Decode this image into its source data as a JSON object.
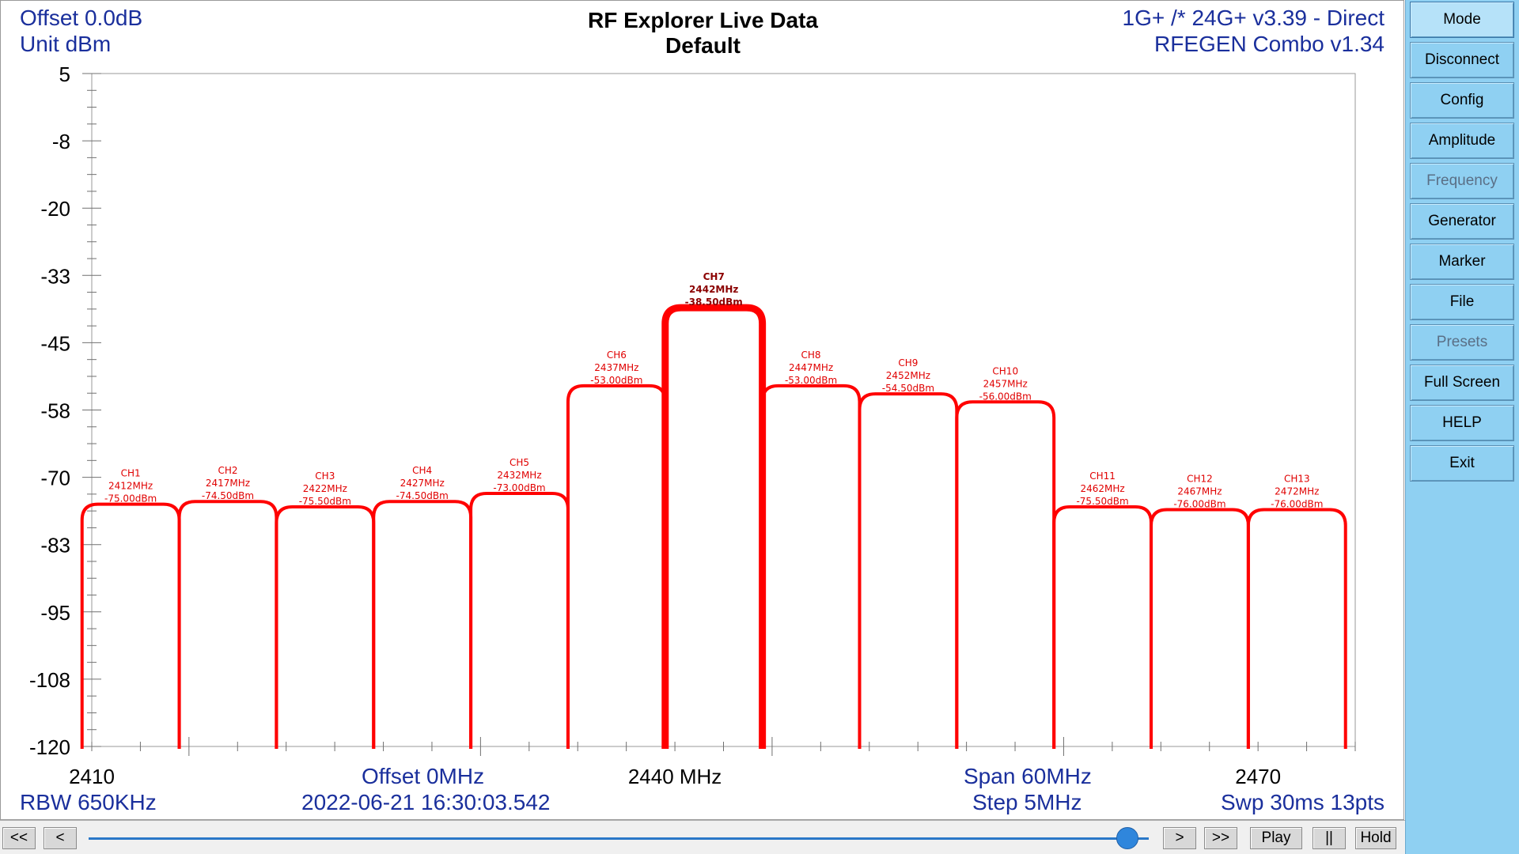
{
  "header": {
    "offset_db": "Offset 0.0dB",
    "unit": "Unit dBm",
    "title": "RF Explorer Live Data",
    "subtitle": "Default",
    "device": "1G+ /* 24G+ v3.39 - Direct",
    "generator": "RFEGEN Combo  v1.34"
  },
  "footer": {
    "rbw": "RBW 650KHz",
    "offset_mhz": "Offset 0MHz",
    "timestamp": "2022-06-21 16:30:03.542",
    "span": "Span 60MHz",
    "step": "Step 5MHz",
    "sweep": "Swp 30ms  13pts"
  },
  "chart_data": {
    "type": "area",
    "y_ticks": [
      "5",
      "-8",
      "-20",
      "-33",
      "-45",
      "-58",
      "-70",
      "-83",
      "-95",
      "-108",
      "-120"
    ],
    "x_ticks": [
      "2410",
      "2440 MHz",
      "2470"
    ],
    "ylim": [
      -120,
      5
    ],
    "xlim": [
      2410,
      2475
    ],
    "trace_color": "#ff0000",
    "channels": [
      {
        "name": "CH1",
        "freq": 2412,
        "freq_label": "2412MHz",
        "level": -75.0,
        "level_label": "-75.00dBm"
      },
      {
        "name": "CH2",
        "freq": 2417,
        "freq_label": "2417MHz",
        "level": -74.5,
        "level_label": "-74.50dBm"
      },
      {
        "name": "CH3",
        "freq": 2422,
        "freq_label": "2422MHz",
        "level": -75.5,
        "level_label": "-75.50dBm"
      },
      {
        "name": "CH4",
        "freq": 2427,
        "freq_label": "2427MHz",
        "level": -74.5,
        "level_label": "-74.50dBm"
      },
      {
        "name": "CH5",
        "freq": 2432,
        "freq_label": "2432MHz",
        "level": -73.0,
        "level_label": "-73.00dBm"
      },
      {
        "name": "CH6",
        "freq": 2437,
        "freq_label": "2437MHz",
        "level": -53.0,
        "level_label": "-53.00dBm"
      },
      {
        "name": "CH7",
        "freq": 2442,
        "freq_label": "2442MHz",
        "level": -38.5,
        "level_label": "-38.50dBm",
        "highlight": true
      },
      {
        "name": "CH8",
        "freq": 2447,
        "freq_label": "2447MHz",
        "level": -53.0,
        "level_label": "-53.00dBm"
      },
      {
        "name": "CH9",
        "freq": 2452,
        "freq_label": "2452MHz",
        "level": -54.5,
        "level_label": "-54.50dBm"
      },
      {
        "name": "CH10",
        "freq": 2457,
        "freq_label": "2457MHz",
        "level": -56.0,
        "level_label": "-56.00dBm"
      },
      {
        "name": "CH11",
        "freq": 2462,
        "freq_label": "2462MHz",
        "level": -75.5,
        "level_label": "-75.50dBm"
      },
      {
        "name": "CH12",
        "freq": 2467,
        "freq_label": "2467MHz",
        "level": -76.0,
        "level_label": "-76.00dBm"
      },
      {
        "name": "CH13",
        "freq": 2472,
        "freq_label": "2472MHz",
        "level": -76.0,
        "level_label": "-76.00dBm"
      }
    ]
  },
  "side_menu": [
    {
      "label": "Mode",
      "state": "selected"
    },
    {
      "label": "Disconnect",
      "state": "normal"
    },
    {
      "label": "Config",
      "state": "normal"
    },
    {
      "label": "Amplitude",
      "state": "normal"
    },
    {
      "label": "Frequency",
      "state": "disabled"
    },
    {
      "label": "Generator",
      "state": "normal"
    },
    {
      "label": "Marker",
      "state": "normal"
    },
    {
      "label": "File",
      "state": "normal"
    },
    {
      "label": "Presets",
      "state": "disabled"
    },
    {
      "label": "Full Screen",
      "state": "normal"
    },
    {
      "label": "HELP",
      "state": "normal"
    },
    {
      "label": "Exit",
      "state": "normal"
    }
  ],
  "playback": {
    "first": "<<",
    "prev": "<",
    "next": ">",
    "last": ">>",
    "play": "Play",
    "pause": "||",
    "hold": "Hold",
    "slider_position": 0.98
  }
}
